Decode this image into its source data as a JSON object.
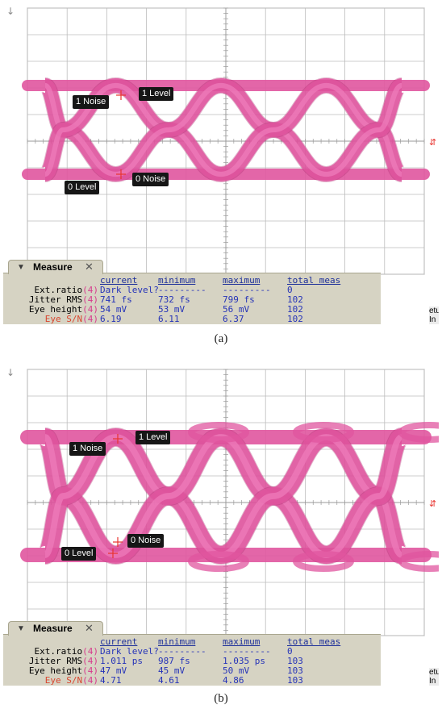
{
  "captions": [
    "(a)",
    "(b)"
  ],
  "measure_tab_label": "Measure",
  "side_label": "etup In",
  "panels": [
    {
      "callouts": {
        "one_noise": "1 Noise",
        "one_level": "1 Level",
        "zero_level": "0 Level",
        "zero_noise": "0 Noise"
      },
      "headers": [
        "current",
        "minimum",
        "maximum",
        "total meas"
      ],
      "rows": [
        {
          "name": "Ext.ratio",
          "ch": "(4)",
          "current": "Dark level?",
          "minimum": "---------",
          "maximum": "---------",
          "total": "0"
        },
        {
          "name": "Jitter RMS",
          "ch": "(4)",
          "current": "741 fs",
          "minimum": "732 fs",
          "maximum": "799 fs",
          "total": "102"
        },
        {
          "name": "Eye height",
          "ch": "(4)",
          "current": "54 mV",
          "minimum": "53 mV",
          "maximum": "56 mV",
          "total": "102"
        },
        {
          "name": "Eye S/N",
          "ch": "(4)",
          "current": "6.19",
          "minimum": "6.11",
          "maximum": "6.37",
          "total": "102"
        }
      ]
    },
    {
      "callouts": {
        "one_noise": "1 Noise",
        "one_level": "1 Level",
        "zero_level": "0 Level",
        "zero_noise": "0 Noise"
      },
      "headers": [
        "current",
        "minimum",
        "maximum",
        "total meas"
      ],
      "rows": [
        {
          "name": "Ext.ratio",
          "ch": "(4)",
          "current": "Dark level?",
          "minimum": "---------",
          "maximum": "---------",
          "total": "0"
        },
        {
          "name": "Jitter RMS",
          "ch": "(4)",
          "current": "1.011 ps",
          "minimum": "987 fs",
          "maximum": "1.035 ps",
          "total": "103"
        },
        {
          "name": "Eye height",
          "ch": "(4)",
          "current": "47 mV",
          "minimum": "45 mV",
          "maximum": "50 mV",
          "total": "103"
        },
        {
          "name": "Eye S/N",
          "ch": "(4)",
          "current": "4.71",
          "minimum": "4.61",
          "maximum": "4.86",
          "total": "103"
        }
      ]
    }
  ],
  "colors": {
    "eye_trace": "#e0559f",
    "eye_core": "#f07dbc",
    "eye_dark": "#a82a6e",
    "grid": "#bcbcbc",
    "screen_bg": "#ffffff",
    "measure_bg": "#d6d3c3",
    "marker": "#e8342f"
  }
}
